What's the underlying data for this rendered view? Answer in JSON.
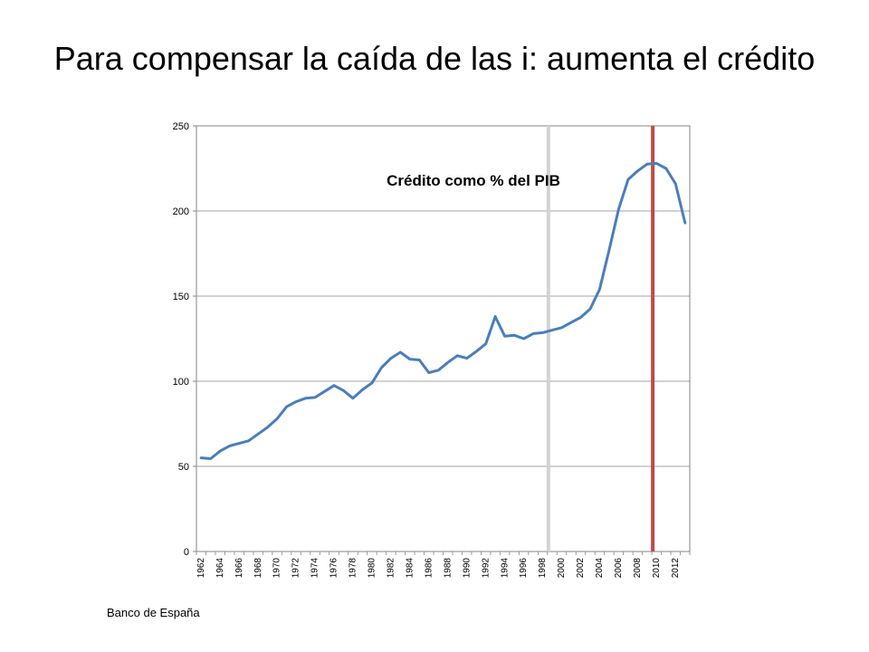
{
  "slide": {
    "title": "Para compensar la caída de las i: aumenta el crédito",
    "source": "Banco de España"
  },
  "chart_data": {
    "type": "line",
    "title": "",
    "xlabel": "",
    "ylabel": "",
    "ylim": [
      0,
      250
    ],
    "yticks": [
      0,
      50,
      100,
      150,
      200,
      250
    ],
    "grid": true,
    "legend": "none",
    "x": [
      1962,
      1963,
      1964,
      1965,
      1966,
      1967,
      1968,
      1969,
      1970,
      1971,
      1972,
      1973,
      1974,
      1975,
      1976,
      1977,
      1978,
      1979,
      1980,
      1981,
      1982,
      1983,
      1984,
      1985,
      1986,
      1987,
      1988,
      1989,
      1990,
      1991,
      1992,
      1993,
      1994,
      1995,
      1996,
      1997,
      1998,
      1999,
      2000,
      2001,
      2002,
      2003,
      2004,
      2005,
      2006,
      2007,
      2008,
      2009,
      2010,
      2011,
      2012,
      2013
    ],
    "xtick_labels": [
      "1962",
      "1964",
      "1966",
      "1968",
      "1970",
      "1972",
      "1974",
      "1976",
      "1978",
      "1980",
      "1982",
      "1984",
      "1986",
      "1988",
      "1990",
      "1992",
      "1994",
      "1996",
      "1998",
      "2000",
      "2002",
      "2004",
      "2006",
      "2008",
      "2010",
      "2012"
    ],
    "series": [
      {
        "name": "",
        "color": "#4a7ebb",
        "values": [
          55,
          54.5,
          59,
          62,
          63.5,
          65,
          69,
          73,
          78,
          85,
          88,
          90,
          90.5,
          94,
          97.5,
          94.5,
          90,
          95,
          99,
          108,
          113.5,
          117,
          113,
          112.5,
          105,
          106.5,
          111,
          115,
          113.5,
          117.5,
          122,
          138,
          126.5,
          127,
          125,
          128,
          128.5,
          130,
          131.5,
          134.5,
          137.5,
          142.5,
          154,
          177,
          201,
          218.5,
          223.5,
          227.5,
          228,
          225,
          216,
          193
        ]
      }
    ],
    "vertical_lines": [
      {
        "x": 1998.6,
        "color": "#d3d3d3"
      },
      {
        "x": 2009.6,
        "color": "#be4b48"
      }
    ],
    "annotation": "Crédito como % del PIB"
  }
}
